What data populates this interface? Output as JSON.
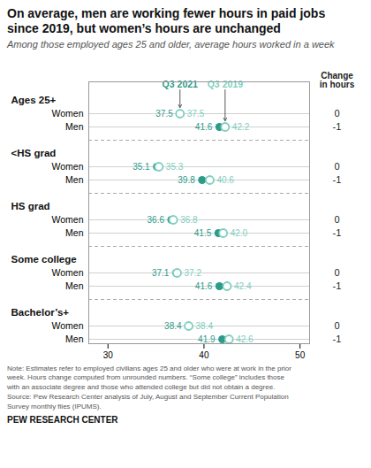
{
  "chart_data": {
    "type": "dumbbell",
    "title": "On average, men are working fewer hours in paid jobs\nsince 2019, but women’s hours are unchanged",
    "subtitle": "Among those employed ages 25 and older, average hours worked in a week",
    "categories": [
      "Women",
      "Men",
      "Women",
      "Men",
      "Women",
      "Men",
      "Women",
      "Men",
      "Women",
      "Men"
    ],
    "category_groups": [
      "Ages 25+",
      "Ages 25+",
      "<HS grad",
      "<HS grad",
      "HS grad",
      "HS grad",
      "Some college",
      "Some college",
      "Bachelor’s+",
      "Bachelor’s+"
    ],
    "series": [
      {
        "name": "Q3 2021",
        "color": "#2d9b8a",
        "marker": "circle",
        "values": [
          37.5,
          41.6,
          35.1,
          39.8,
          36.6,
          41.5,
          37.1,
          41.6,
          38.4,
          41.9
        ]
      },
      {
        "name": "Q3 2019",
        "color": "#7dcfbf",
        "marker": "open_circle",
        "values": [
          37.5,
          42.2,
          35.3,
          40.6,
          36.8,
          42.0,
          37.2,
          42.4,
          38.4,
          42.6
        ],
        "value_labels": [
          "37.5",
          "42.2",
          "35.3",
          "40.6",
          "36.8",
          "42.0",
          "37.2",
          "42.4",
          "38.4",
          "42.6"
        ]
      }
    ],
    "change_header": "Change\nin hours",
    "change": [
      0,
      -1,
      0,
      -1,
      0,
      -1,
      0,
      -1,
      0,
      -1
    ],
    "xlim": [
      28,
      51
    ],
    "xticks": [
      30,
      40,
      50
    ],
    "grid": false,
    "data_labels": true,
    "legend": "top",
    "note": "Note: Estimates refer to employed civilians ages 25 and older who were at work in the prior\nweek. Hours change computed from unrounded numbers. “Some college” includes those\nwith an associate degree and those who attended college but did not obtain a degree.\nSource: Pew Research Center analysis of July, August and September Current Population\nSurvey monthly files (IPUMS).",
    "source": "PEW RESEARCH CENTER"
  }
}
